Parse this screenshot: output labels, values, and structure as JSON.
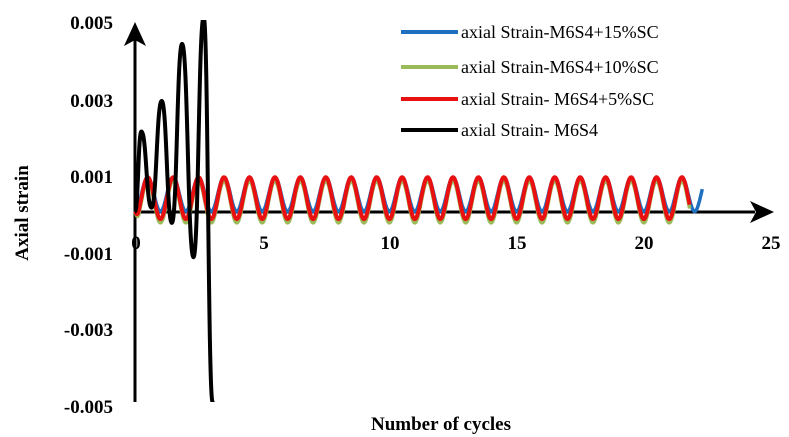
{
  "chart_data": {
    "type": "line",
    "xlabel": "Number of cycles",
    "ylabel": "Axial strain",
    "xlim": [
      0,
      25
    ],
    "ylim": [
      -0.005,
      0.005
    ],
    "x_ticks": [
      "0",
      "5",
      "10",
      "15",
      "20",
      "25"
    ],
    "y_ticks": [
      "0.005",
      "0.003",
      "0.001",
      "-0.001",
      "-0.003",
      "-0.005"
    ],
    "legend_position": "top-right",
    "grid": false,
    "series": [
      {
        "name": "axial Strain-M6S4+15%SC",
        "color": "#1f6fc0",
        "x_end": 22.3,
        "peak_min": 0.0,
        "peak_max": 0.0009,
        "period": 1.0
      },
      {
        "name": "axial Strain-M6S4+10%SC",
        "color": "#9bbb59",
        "x_end": 21.8,
        "peak_min": -0.0003,
        "peak_max": 0.0008,
        "period": 1.0
      },
      {
        "name": "axial Strain- M6S4+5%SC",
        "color": "#e81010",
        "x_end": 21.8,
        "peak_min": -0.0002,
        "peak_max": 0.0009,
        "period": 1.0
      },
      {
        "name": "axial Strain- M6S4",
        "color": "#000000",
        "points": [
          [
            0,
            0
          ],
          [
            0.25,
            0.0021
          ],
          [
            0.65,
            0.0001
          ],
          [
            1.05,
            0.0029
          ],
          [
            1.45,
            -0.0003
          ],
          [
            1.85,
            0.0044
          ],
          [
            2.3,
            -0.0012
          ],
          [
            2.7,
            0.0051
          ],
          [
            3.05,
            -0.005
          ],
          [
            3.1,
            -0.0052
          ]
        ]
      }
    ]
  }
}
